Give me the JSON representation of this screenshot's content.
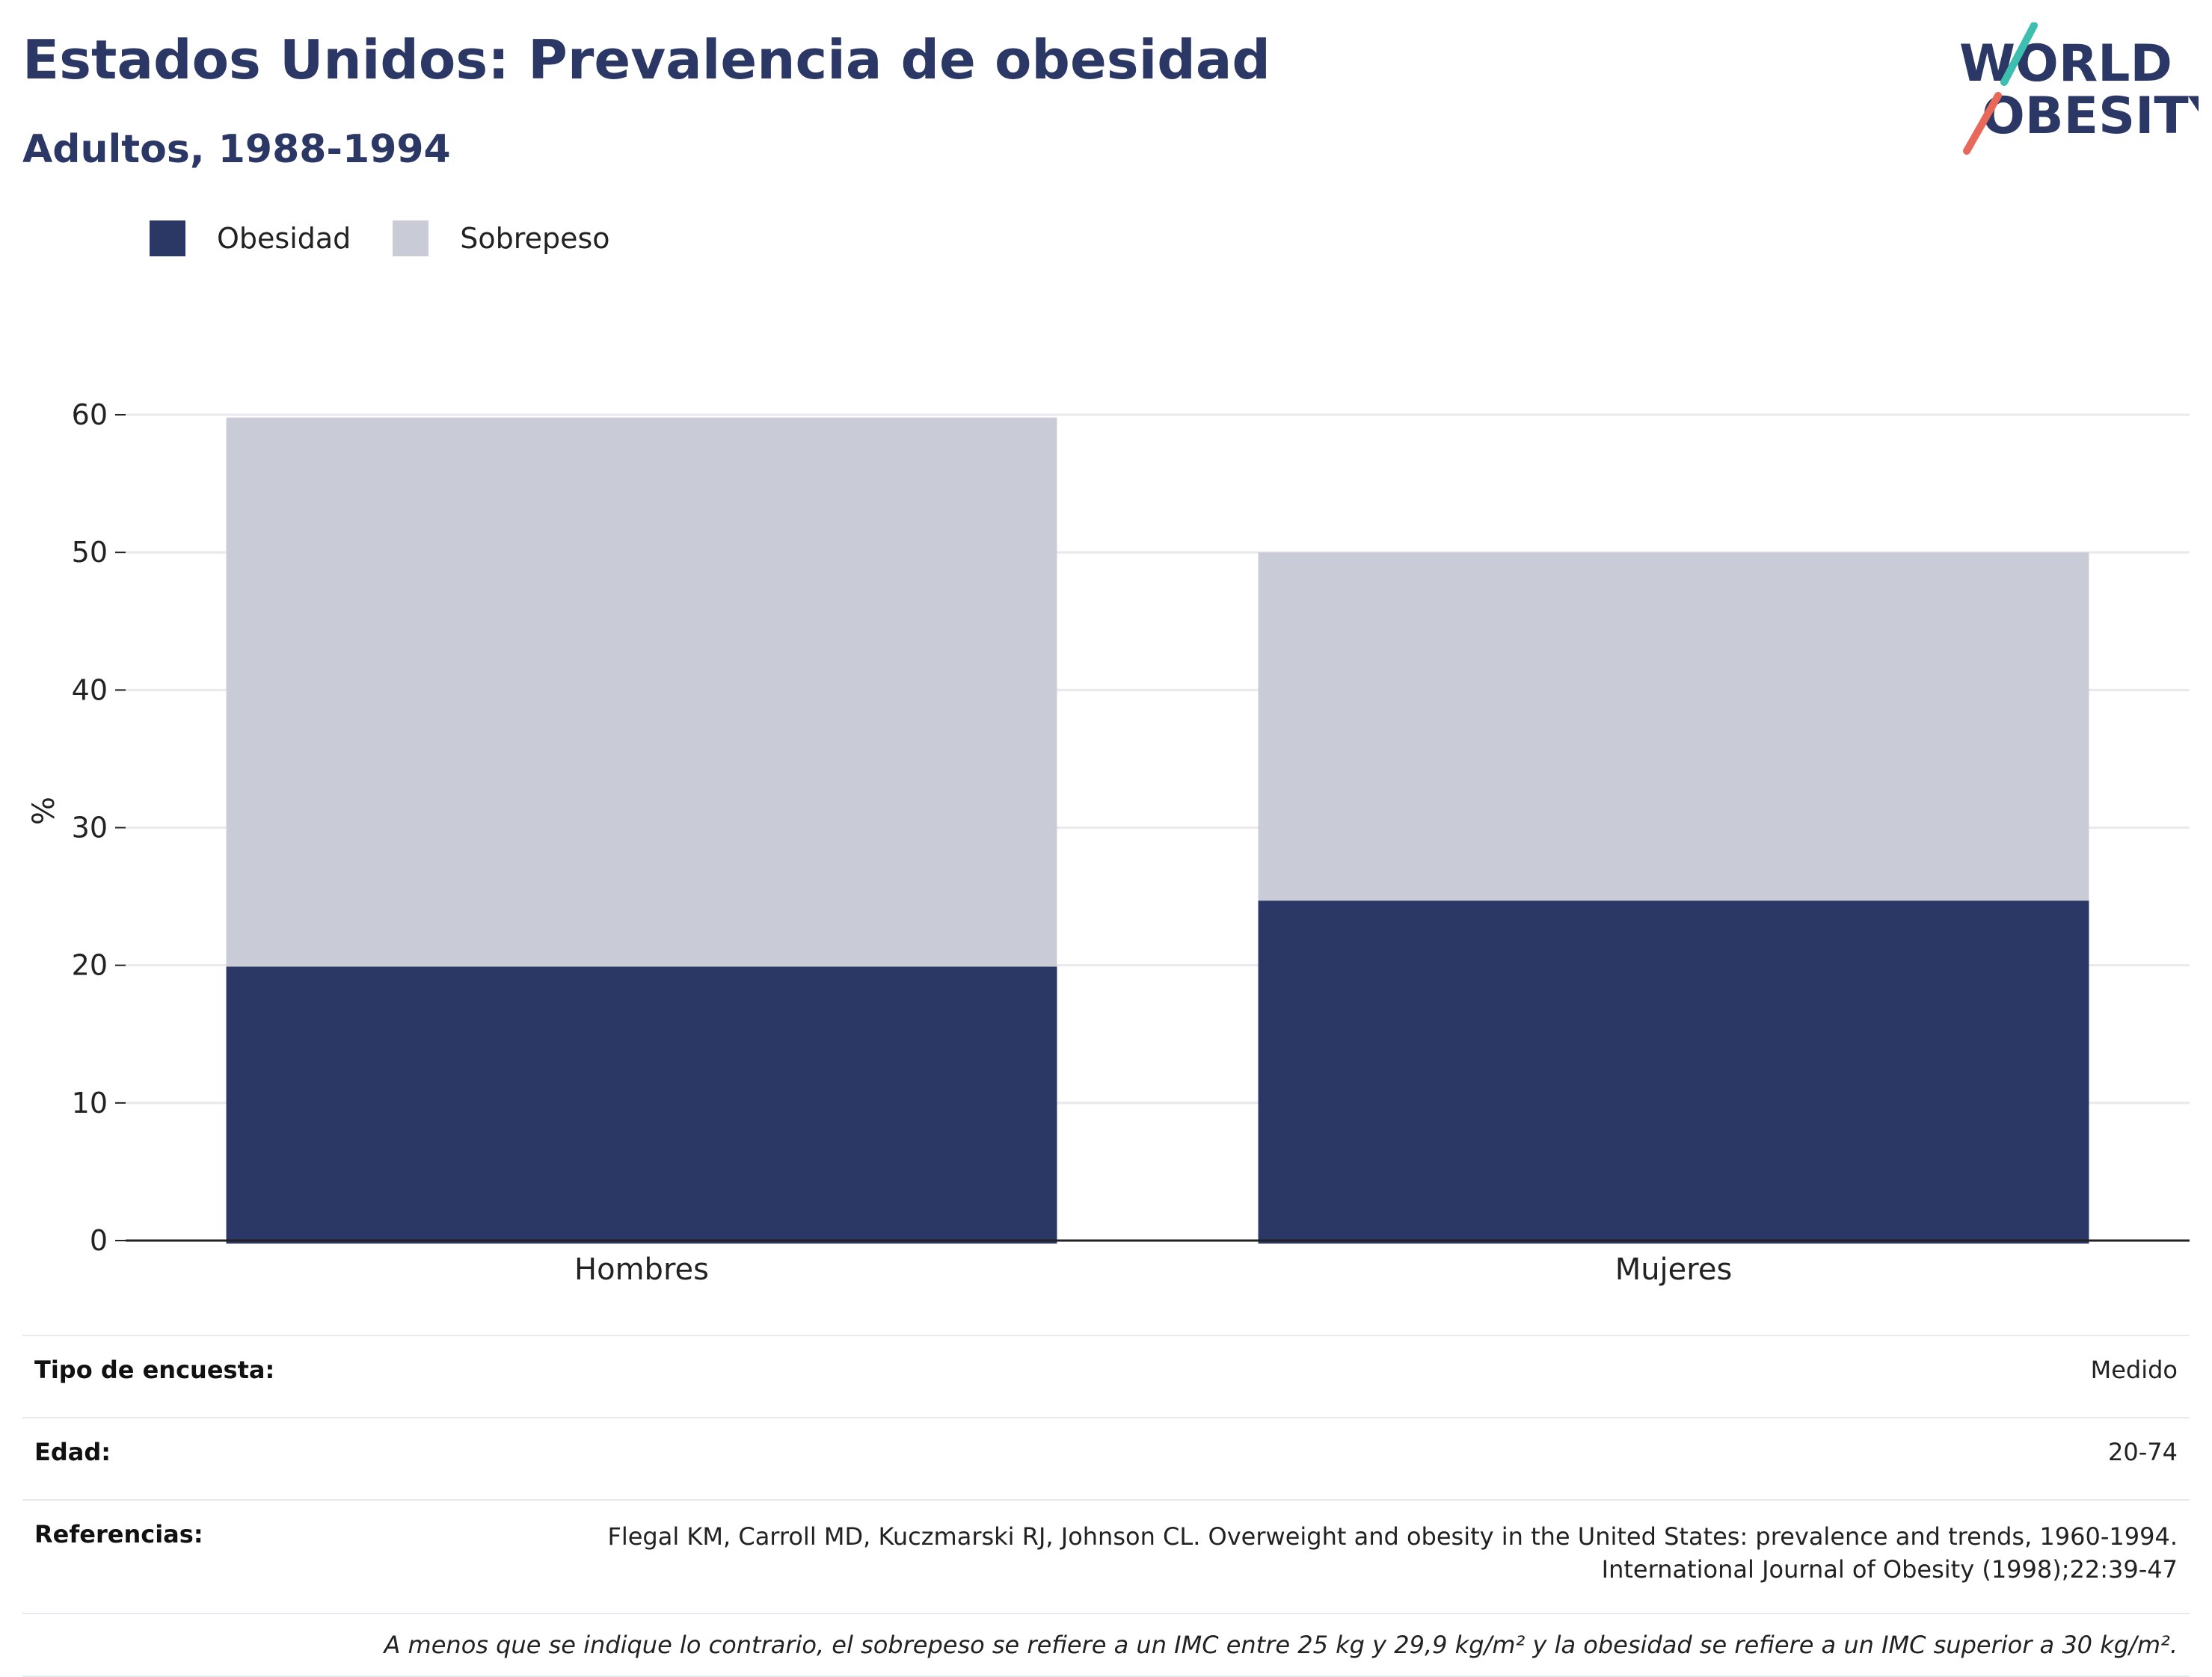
{
  "header": {
    "title": "Estados Unidos: Prevalencia de obesidad",
    "subtitle": "Adultos, 1988-1994",
    "logo_line1": "WORLD",
    "logo_line2": "OBESITY"
  },
  "colors": {
    "obesity": "#2b3765",
    "overweight": "#c9ccd7",
    "title": "#2b3765",
    "logo_teal": "#3cbfae",
    "logo_coral": "#e8685a"
  },
  "chart_data": {
    "type": "bar",
    "stacked": true,
    "categories": [
      "Hombres",
      "Mujeres"
    ],
    "series": [
      {
        "name": "Obesidad",
        "values": [
          19.9,
          24.7
        ]
      },
      {
        "name": "Sobrepeso",
        "values": [
          39.9,
          25.3
        ]
      }
    ],
    "ylabel": "%",
    "xlabel": "",
    "ylim": [
      0,
      60
    ],
    "yticks": [
      "0",
      "10",
      "20",
      "30",
      "40",
      "50",
      "60"
    ],
    "grid": true,
    "legend_position": "top-left"
  },
  "footer": {
    "survey_label": "Tipo de encuesta:",
    "survey_value": "Medido",
    "age_label": "Edad:",
    "age_value": "20-74",
    "refs_label": "Referencias:",
    "refs_line1": "Flegal KM, Carroll MD, Kuczmarski RJ, Johnson CL. Overweight and obesity in the United States: prevalence and trends, 1960-1994.",
    "refs_line2": "International Journal of Obesity (1998);22:39-47",
    "note": "A menos que se indique lo contrario, el sobrepeso se refiere a un IMC entre 25 kg y 29,9 kg/m² y la obesidad se refiere a un IMC superior a 30 kg/m²."
  }
}
